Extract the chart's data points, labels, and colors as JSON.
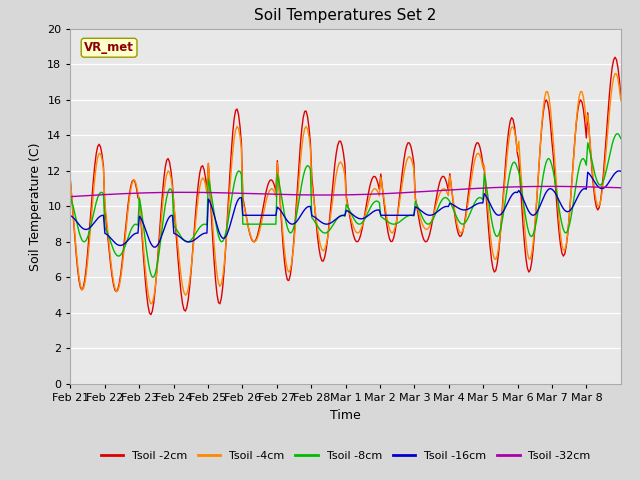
{
  "title": "Soil Temperatures Set 2",
  "xlabel": "Time",
  "ylabel": "Soil Temperature (C)",
  "ylim": [
    0,
    20
  ],
  "background_color": "#d8d8d8",
  "plot_bg_color": "#e8e8e8",
  "annotation_text": "VR_met",
  "annotation_color": "#8b0000",
  "annotation_bg": "#ffffcc",
  "x_tick_labels": [
    "Feb 21",
    "Feb 22",
    "Feb 23",
    "Feb 24",
    "Feb 25",
    "Feb 26",
    "Feb 27",
    "Feb 28",
    "Mar 1",
    "Mar 2",
    "Mar 3",
    "Mar 4",
    "Mar 5",
    "Mar 6",
    "Mar 7",
    "Mar 8"
  ],
  "series": {
    "Tsoil -2cm": {
      "color": "#dd0000"
    },
    "Tsoil -4cm": {
      "color": "#ff8800"
    },
    "Tsoil -8cm": {
      "color": "#00bb00"
    },
    "Tsoil -16cm": {
      "color": "#0000cc"
    },
    "Tsoil -32cm": {
      "color": "#aa00aa"
    }
  }
}
